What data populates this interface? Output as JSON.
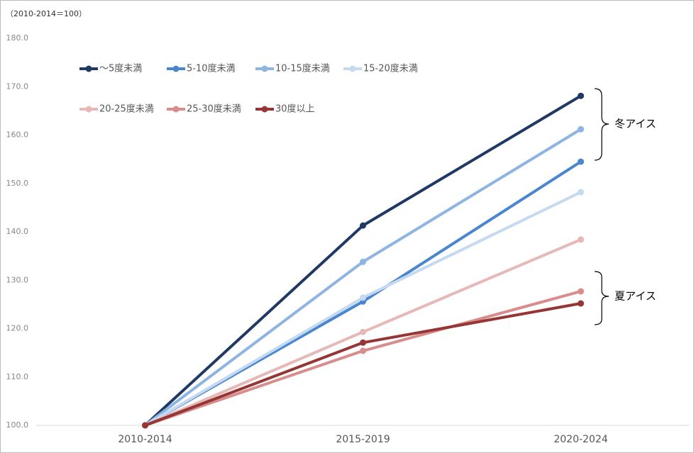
{
  "chart_data": {
    "type": "line",
    "unit_label": "（2010-2014＝100）",
    "categories": [
      "2010-2014",
      "2015-2019",
      "2020-2024"
    ],
    "series": [
      {
        "name": "～5度未満",
        "color": "#1f3864",
        "values": [
          100,
          141.3,
          168.1
        ]
      },
      {
        "name": "5-10度未満",
        "color": "#4a86d0",
        "values": [
          100,
          125.6,
          154.5
        ]
      },
      {
        "name": "10-15度未満",
        "color": "#8eb4e3",
        "values": [
          100,
          133.8,
          161.2
        ]
      },
      {
        "name": "15-20度未満",
        "color": "#c5d9f1",
        "values": [
          100,
          126.4,
          148.2
        ]
      },
      {
        "name": "20-25度未満",
        "color": "#e6b9b8",
        "values": [
          100,
          119.3,
          138.4
        ]
      },
      {
        "name": "25-30度未満",
        "color": "#d98c8c",
        "values": [
          100,
          115.4,
          127.7
        ]
      },
      {
        "name": "30度以上",
        "color": "#963634",
        "values": [
          100,
          117.1,
          125.2
        ]
      }
    ],
    "ylim": [
      100,
      180
    ],
    "yticks": [
      {
        "value": 100,
        "label": "100.0"
      },
      {
        "value": 110,
        "label": "110.0"
      },
      {
        "value": 120,
        "label": "120.0"
      },
      {
        "value": 130,
        "label": "130.0"
      },
      {
        "value": 140,
        "label": "140.0"
      },
      {
        "value": 150,
        "label": "150.0"
      },
      {
        "value": 160,
        "label": "160.0"
      },
      {
        "value": 170,
        "label": "170.0"
      },
      {
        "value": 180,
        "label": "180.0"
      }
    ],
    "grid": false,
    "annotations": [
      "冬アイス",
      "夏アイス"
    ]
  }
}
